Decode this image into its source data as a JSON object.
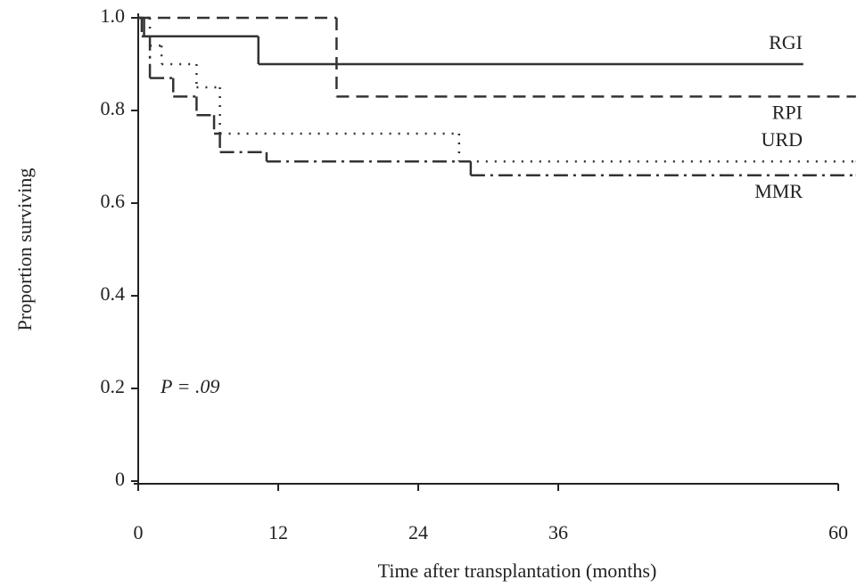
{
  "chart_data": {
    "type": "step",
    "xlabel": "Time after transplantation (months)",
    "ylabel": "Proportion surviving",
    "annotation": "P = .09",
    "xlim": [
      0,
      60
    ],
    "xticks": [
      0,
      12,
      24,
      36,
      60
    ],
    "ylim": [
      0,
      1
    ],
    "yticks": [
      0,
      0.2,
      0.4,
      0.6,
      0.8,
      {
        "value": 1,
        "label": "1.0"
      }
    ],
    "series": [
      {
        "name": "RGI",
        "color": "#333333",
        "style": "solid",
        "x": [
          0,
          0.5,
          10.3,
          57
        ],
        "values": [
          1,
          0.96,
          0.9,
          0.9
        ]
      },
      {
        "name": "RPI",
        "color": "#333333",
        "style": "dashed",
        "x": [
          0,
          17,
          61.5
        ],
        "values": [
          1,
          0.83,
          0.83
        ]
      },
      {
        "name": "URD",
        "color": "#333333",
        "style": "dotted",
        "x": [
          0,
          1,
          2,
          5,
          7,
          27.5,
          61.5
        ],
        "values": [
          1,
          0.94,
          0.9,
          0.85,
          0.75,
          0.69,
          0.69
        ]
      },
      {
        "name": "MMR",
        "color": "#333333",
        "style": "dashdot",
        "x": [
          0,
          0.3,
          1,
          3,
          5,
          6.5,
          7,
          11,
          28.5,
          61.5
        ],
        "values": [
          1,
          0.96,
          0.87,
          0.83,
          0.79,
          0.75,
          0.71,
          0.69,
          0.66,
          0.66
        ]
      }
    ]
  }
}
